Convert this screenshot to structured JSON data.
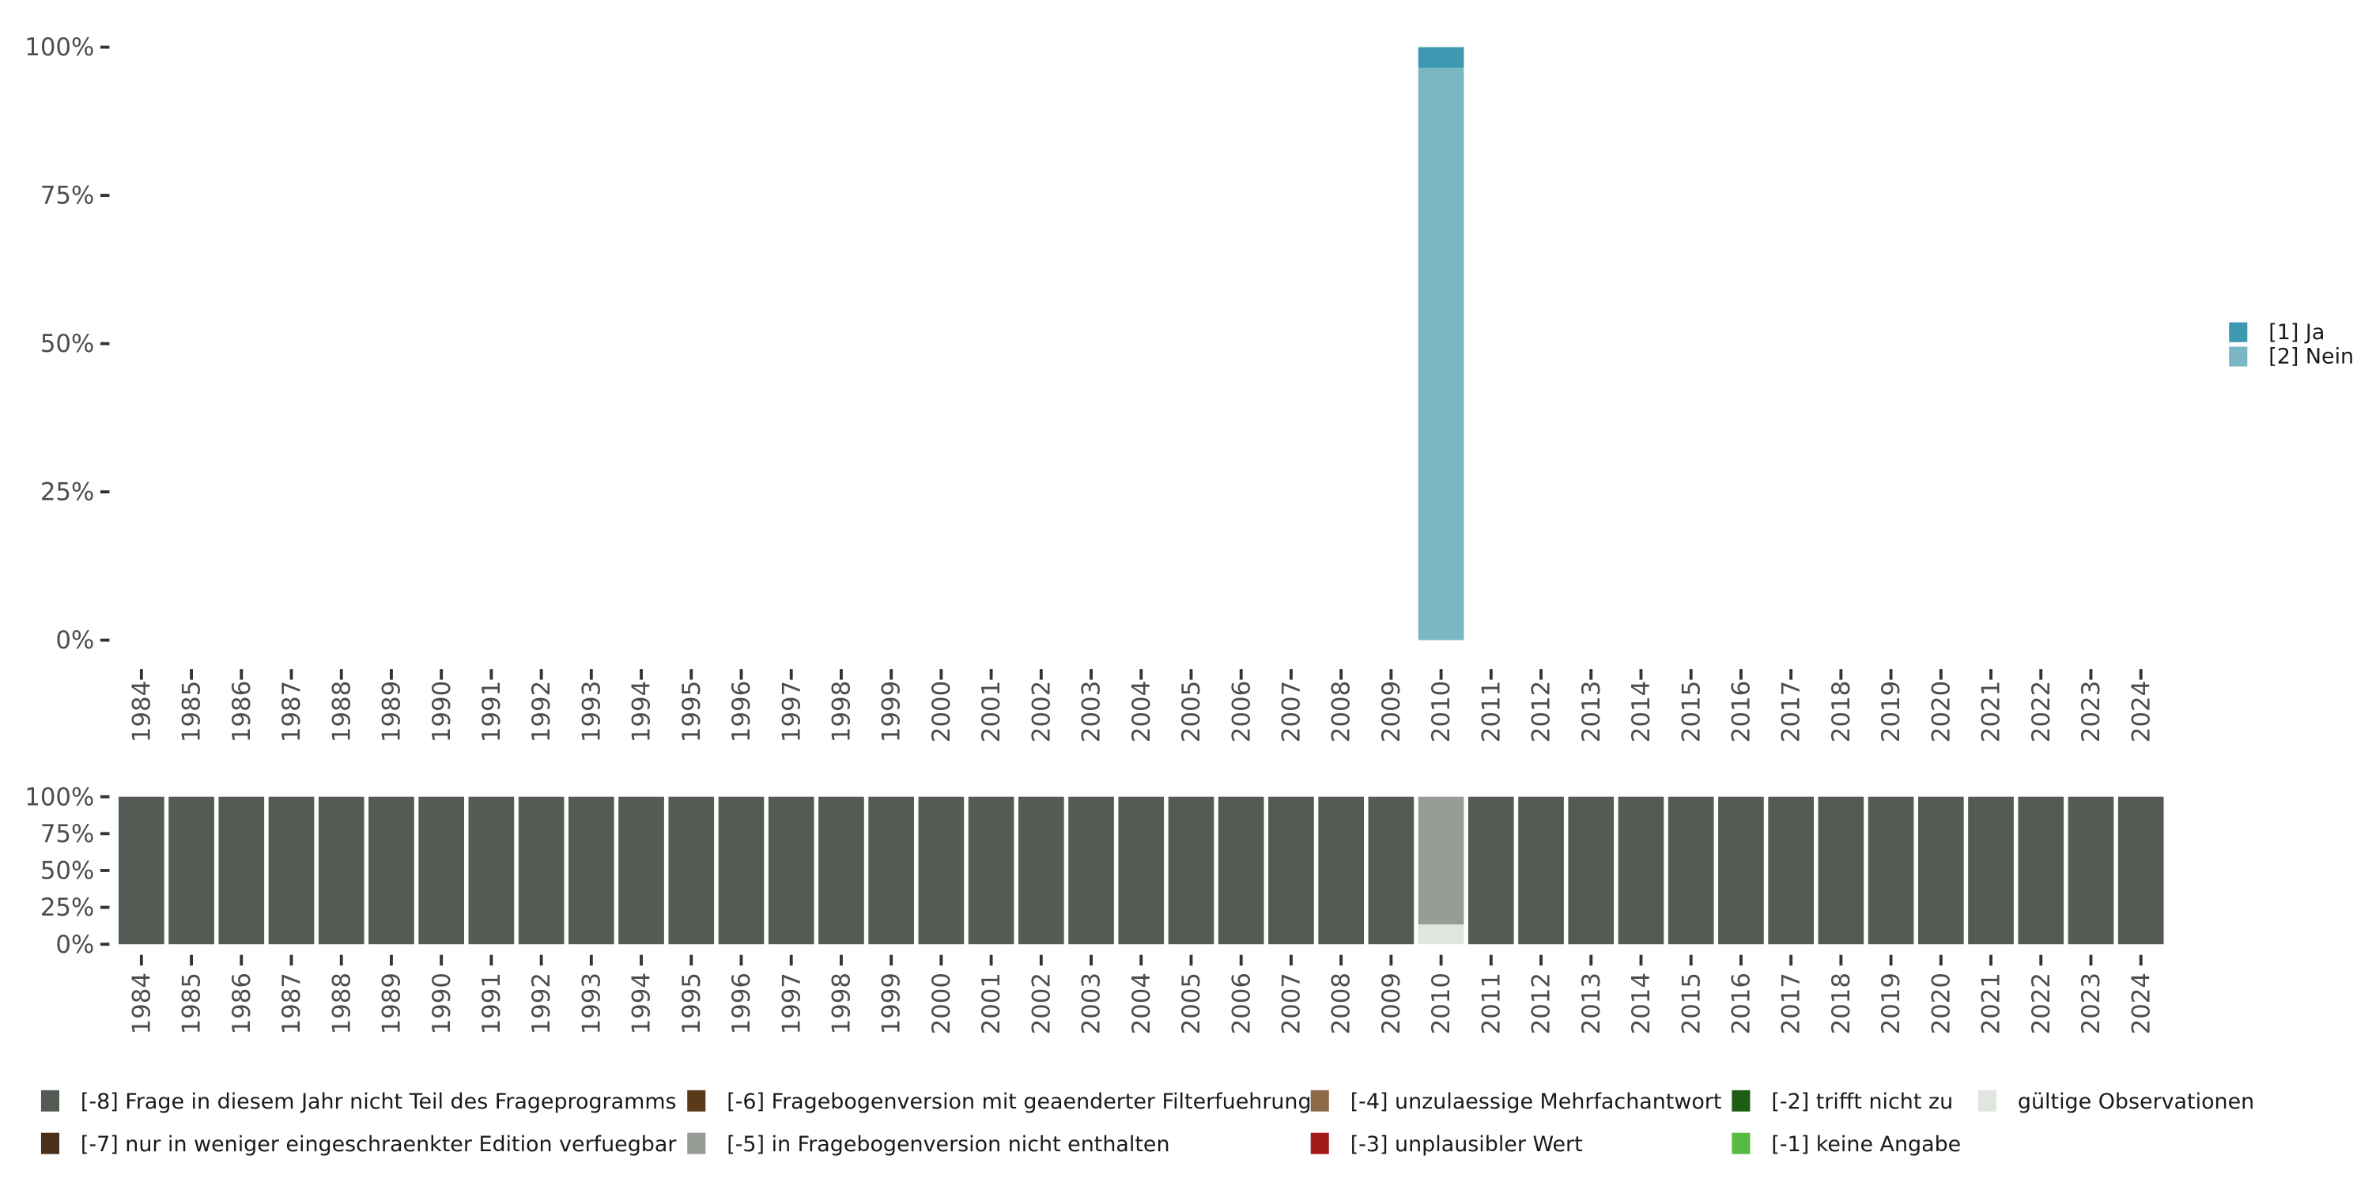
{
  "chart_data": [
    {
      "type": "bar",
      "stacked": true,
      "title": "",
      "xlabel": "",
      "ylabel": "",
      "ylim": [
        0,
        100
      ],
      "y_ticks": [
        "0%",
        "25%",
        "50%",
        "75%",
        "100%"
      ],
      "categories": [
        "1984",
        "1985",
        "1986",
        "1987",
        "1988",
        "1989",
        "1990",
        "1991",
        "1992",
        "1993",
        "1994",
        "1995",
        "1996",
        "1997",
        "1998",
        "1999",
        "2000",
        "2001",
        "2002",
        "2003",
        "2004",
        "2005",
        "2006",
        "2007",
        "2008",
        "2009",
        "2010",
        "2011",
        "2012",
        "2013",
        "2014",
        "2015",
        "2016",
        "2017",
        "2018",
        "2019",
        "2020",
        "2021",
        "2022",
        "2023",
        "2024"
      ],
      "series": [
        {
          "name": "[1] Ja",
          "color": "#3c99b1",
          "values": {
            "2010": 3.5
          }
        },
        {
          "name": "[2] Nein",
          "color": "#7ab6c4",
          "values": {
            "2010": 96.5
          }
        }
      ],
      "legend_position": "right"
    },
    {
      "type": "bar",
      "stacked": true,
      "ylim": [
        0,
        100
      ],
      "y_ticks": [
        "0%",
        "25%",
        "50%",
        "75%",
        "100%"
      ],
      "categories": [
        "1984",
        "1985",
        "1986",
        "1987",
        "1988",
        "1989",
        "1990",
        "1991",
        "1992",
        "1993",
        "1994",
        "1995",
        "1996",
        "1997",
        "1998",
        "1999",
        "2000",
        "2001",
        "2002",
        "2003",
        "2004",
        "2005",
        "2006",
        "2007",
        "2008",
        "2009",
        "2010",
        "2011",
        "2012",
        "2013",
        "2014",
        "2015",
        "2016",
        "2017",
        "2018",
        "2019",
        "2020",
        "2021",
        "2022",
        "2023",
        "2024"
      ],
      "series": [
        {
          "name": "[-8] Frage in diesem Jahr nicht Teil des Frageprogramms",
          "color": "#545b55",
          "values": "100 for all years except 2010"
        },
        {
          "name": "[-5] in Fragebogenversion nicht enthalten",
          "color": "#979c96",
          "values": {
            "2010": 86.6
          }
        },
        {
          "name": "gültige Observationen",
          "color": "#e0e5e0",
          "values": {
            "2010": 13.4
          }
        }
      ],
      "legend_position": "bottom",
      "legend": [
        {
          "name": "[-8] Frage in diesem Jahr nicht Teil des Frageprogramms",
          "color": "#545b55"
        },
        {
          "name": "[-6] Fragebogenversion mit geaenderter Filterfuehrung",
          "color": "#5b3a1a"
        },
        {
          "name": "[-4] unzulaessige Mehrfachantwort",
          "color": "#8c6a48"
        },
        {
          "name": "[-2] trifft nicht zu",
          "color": "#1f5c14"
        },
        {
          "name": "gültige Observationen",
          "color": "#e0e5e0"
        },
        {
          "name": "[-7] nur in weniger eingeschraenkter Edition verfuegbar",
          "color": "#4a2f1a"
        },
        {
          "name": "[-5] in Fragebogenversion nicht enthalten",
          "color": "#979c96"
        },
        {
          "name": "[-3] unplausibler Wert",
          "color": "#a3191a"
        },
        {
          "name": "[-1] keine Angabe",
          "color": "#55bb44"
        }
      ]
    }
  ]
}
